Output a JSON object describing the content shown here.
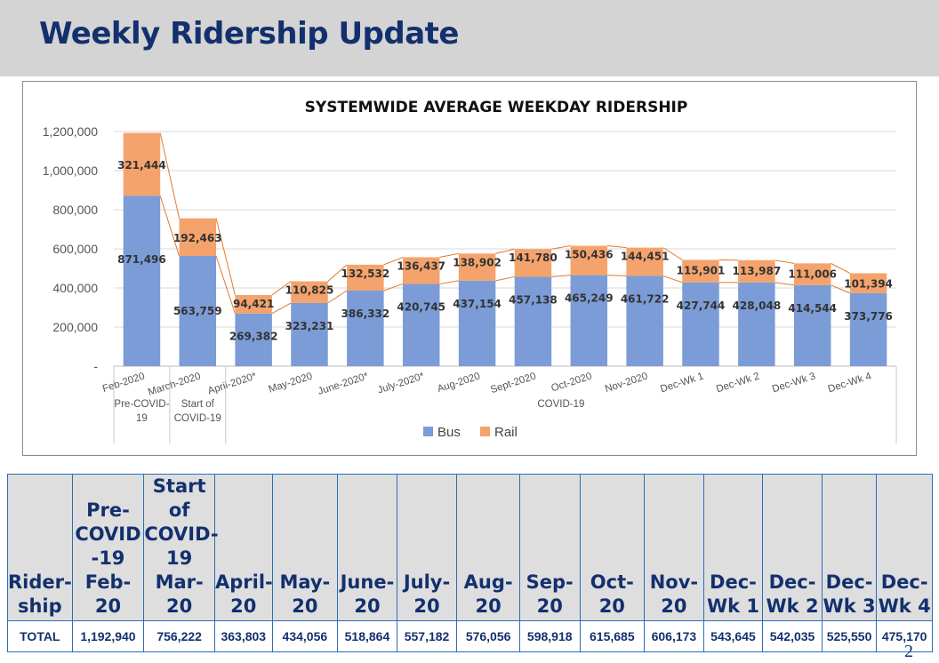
{
  "page": {
    "title": "Weekly Ridership Update",
    "page_number": "2"
  },
  "colors": {
    "bus": "#7b9cd6",
    "rail": "#f4a36c",
    "line": "#e1782f",
    "title_blue": "#13306e",
    "header_gray": "#d4d4d4",
    "table_border": "#2a6ebb"
  },
  "chart_data": {
    "type": "bar",
    "stacked": true,
    "title": "SYSTEMWIDE AVERAGE WEEKDAY RIDERSHIP",
    "categories": [
      "Feb-2020",
      "March-2020",
      "April-2020*",
      "May-2020",
      "June-2020*",
      "July-2020*",
      "Aug-2020",
      "Sept-2020",
      "Oct-2020",
      "Nov-2020",
      "Dec-Wk 1",
      "Dec-Wk 2",
      "Dec-Wk 3",
      "Dec-Wk 4"
    ],
    "groups": [
      {
        "label": "Pre-COVID-19",
        "span": [
          0,
          0
        ]
      },
      {
        "label": "Start of COVID-19",
        "span": [
          1,
          1
        ]
      },
      {
        "label": "COVID-19",
        "span": [
          2,
          13
        ]
      }
    ],
    "series": [
      {
        "name": "Bus",
        "values": [
          871496,
          563759,
          269382,
          323231,
          386332,
          420745,
          437154,
          457138,
          465249,
          461722,
          427744,
          428048,
          414544,
          373776
        ]
      },
      {
        "name": "Rail",
        "values": [
          321444,
          192463,
          94421,
          110825,
          132532,
          136437,
          138902,
          141780,
          150436,
          144451,
          115901,
          113987,
          111006,
          101394
        ]
      }
    ],
    "data_labels": {
      "Bus": [
        "871,496",
        "563,759",
        "269,382",
        "323,231",
        "386,332",
        "420,745",
        "437,154",
        "457,138",
        "465,249",
        "461,722",
        "427,744",
        "428,048",
        "414,544",
        "373,776"
      ],
      "Rail": [
        "321,444",
        "192,463",
        "94,421",
        "110,825",
        "132,532",
        "136,437",
        "138,902",
        "141,780",
        "150,436",
        "144,451",
        "115,901",
        "113,987",
        "111,006",
        "101,394"
      ]
    },
    "ylim": [
      0,
      1200000
    ],
    "yticks": [
      0,
      200000,
      400000,
      600000,
      800000,
      1000000,
      1200000
    ],
    "ytick_labels": [
      "-",
      "200,000",
      "400,000",
      "600,000",
      "800,000",
      "1,000,000",
      "1,200,000"
    ],
    "legend": "bottom-center",
    "grid": true
  },
  "table": {
    "header": [
      "Rider-\nship",
      "Pre-\nCOVID\n-19\nFeb-20",
      "Start of\nCOVID-\n19\nMar-20",
      "April-\n20",
      "May-20",
      "June-\n20",
      "July-20",
      "Aug-\n20",
      "Sep-\n20",
      "Oct-\n20",
      "Nov-\n20",
      "Dec-\nWk 1",
      "Dec-\nWk 2",
      "Dec-\nWk 3",
      "Dec-\nWk 4"
    ],
    "total_row": [
      "TOTAL",
      "1,192,940",
      "756,222",
      "363,803",
      "434,056",
      "518,864",
      "557,182",
      "576,056",
      "598,918",
      "615,685",
      "606,173",
      "543,645",
      "542,035",
      "525,550",
      "475,170"
    ]
  }
}
